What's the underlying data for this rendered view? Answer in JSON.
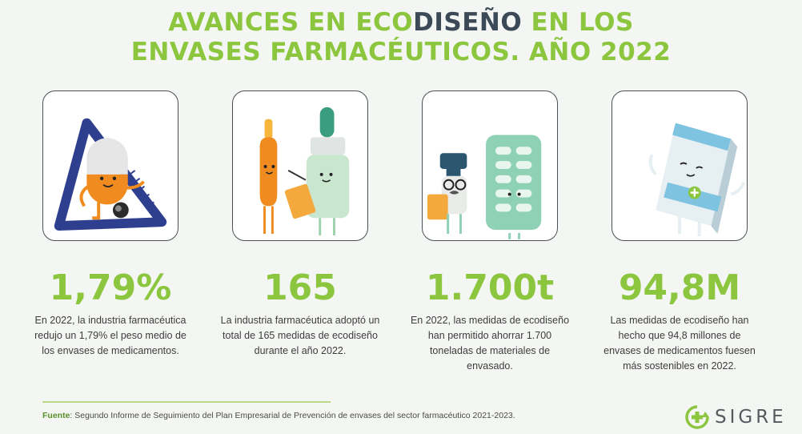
{
  "header": {
    "title_part1": "AVANCES EN ECO",
    "title_part2": "DISEÑO",
    "title_part3": " EN LOS",
    "title_line2": "ENVASES FARMACÉUTICOS. AÑO 2022"
  },
  "stats": [
    {
      "value": "1,79%",
      "description": "En 2022, la industria farmacéutica redujo un 1,79% el peso medio de los envases de medicamentos.",
      "icon": "ruler-pill-character-icon"
    },
    {
      "value": "165",
      "description": "La industria farmacéutica adoptó un total de 165 medidas de ecodiseño durante el año 2022.",
      "icon": "ampoule-bottle-characters-icon"
    },
    {
      "value": "1.700t",
      "description": "En 2022, las medidas de ecodiseño han permitido ahorrar 1.700 toneladas de materiales de envasado.",
      "icon": "dropper-blister-characters-icon"
    },
    {
      "value": "94,8M",
      "description": "Las medidas de ecodiseño han hecho que 94,8 millones de envases de medicamentos fuesen más sostenibles en 2022.",
      "icon": "medicine-box-character-icon"
    }
  ],
  "footer": {
    "source_label": "Fuente",
    "source_text": ": Segundo Informe de Seguimiento del Plan Empresarial de Prevención de envases del sector farmacéutico 2021-2023."
  },
  "logo": {
    "text": "SIGRE"
  },
  "colors": {
    "accent": "#8cc63f",
    "dark": "#3c4a57"
  }
}
